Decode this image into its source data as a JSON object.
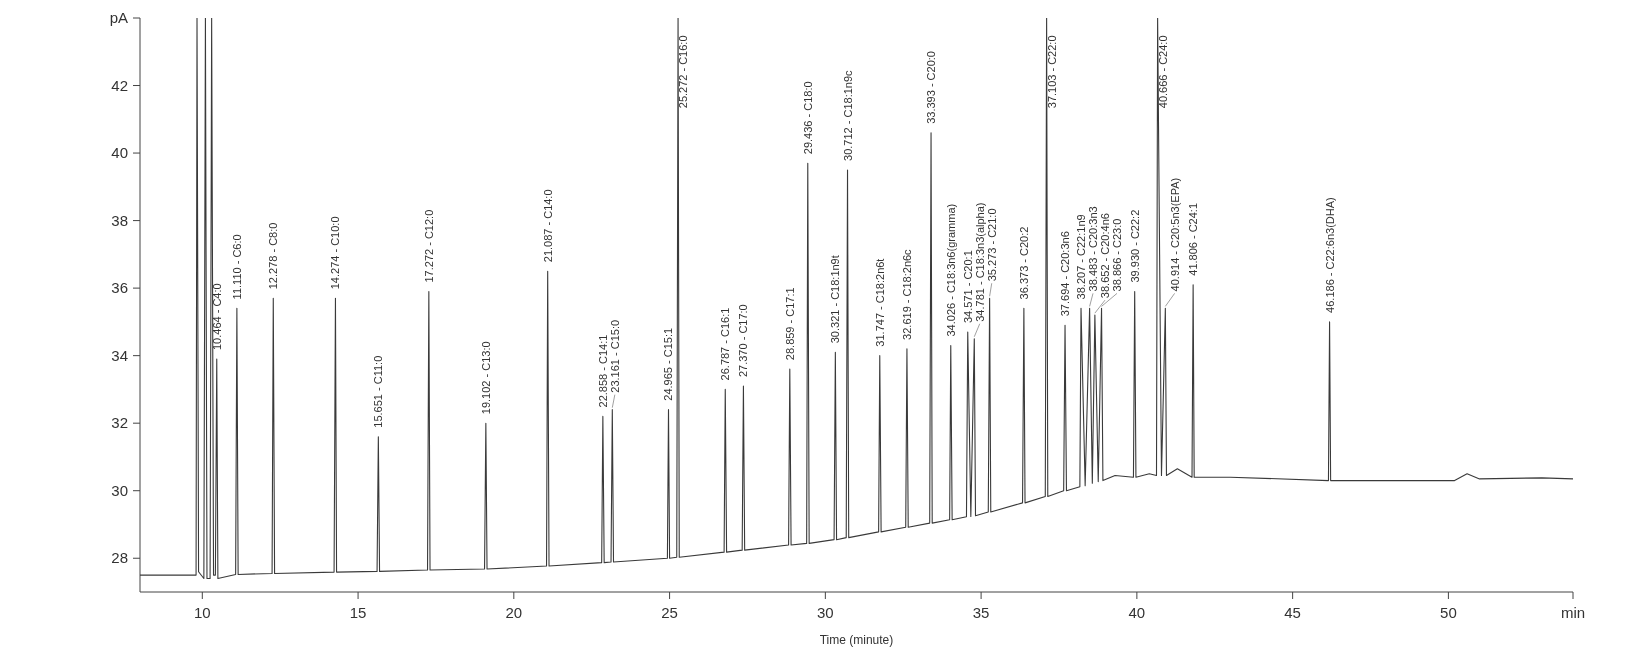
{
  "chart_data": {
    "type": "line",
    "xlabel": "Time (minute)",
    "xlim": [
      8,
      54
    ],
    "xticks": [
      10,
      15,
      20,
      25,
      30,
      35,
      40,
      45,
      50,
      {
        "value": 54,
        "label": "min"
      }
    ],
    "ylim": [
      27,
      44
    ],
    "yticks": [
      28,
      30,
      32,
      34,
      36,
      38,
      40,
      42,
      {
        "value": 44,
        "label": "pA"
      }
    ],
    "series": [
      {
        "color": "#3a3a3a",
        "x": [
          8,
          9.8,
          9.83,
          9.88,
          10.05,
          10.1,
          10.15,
          10.25,
          10.3,
          10.36,
          10.42,
          10.464,
          10.5,
          11.07,
          11.11,
          11.15,
          12.24,
          12.278,
          12.32,
          14.23,
          14.274,
          14.31,
          15.61,
          15.651,
          15.69,
          17.23,
          17.272,
          17.31,
          19.06,
          19.102,
          19.14,
          21.05,
          21.087,
          21.13,
          22.82,
          22.858,
          22.9,
          23.12,
          23.161,
          23.2,
          24.93,
          24.965,
          25.0,
          25.23,
          25.272,
          25.31,
          26.75,
          26.787,
          26.83,
          27.33,
          27.37,
          27.41,
          28.82,
          28.859,
          28.9,
          29.4,
          29.436,
          29.48,
          30.28,
          30.321,
          30.36,
          30.67,
          30.712,
          30.75,
          31.71,
          31.747,
          31.79,
          32.58,
          32.619,
          32.66,
          33.35,
          33.393,
          33.43,
          33.99,
          34.026,
          34.07,
          34.53,
          34.571,
          34.67,
          34.781,
          34.82,
          35.23,
          35.273,
          35.31,
          36.33,
          36.373,
          36.41,
          37.06,
          37.103,
          37.14,
          37.65,
          37.694,
          37.74,
          38.17,
          38.207,
          38.34,
          38.483,
          38.57,
          38.652,
          38.76,
          38.866,
          38.91,
          39.3,
          39.89,
          39.93,
          39.97,
          40.4,
          40.63,
          40.666,
          40.79,
          40.914,
          40.95,
          41.3,
          41.77,
          41.806,
          41.84,
          43,
          46.15,
          46.186,
          46.22,
          48,
          50.2,
          50.6,
          51,
          53,
          54
        ],
        "values": [
          27.5,
          27.5,
          44,
          27.6,
          27.4,
          44,
          27.4,
          27.4,
          44,
          27.5,
          27.5,
          33.9,
          27.4,
          27.52,
          35.4,
          27.52,
          27.55,
          35.7,
          27.55,
          27.59,
          35.7,
          27.59,
          27.61,
          31.6,
          27.61,
          27.65,
          35.9,
          27.65,
          27.68,
          32.0,
          27.68,
          27.77,
          36.5,
          27.77,
          27.87,
          32.2,
          27.87,
          27.89,
          32.4,
          27.89,
          28.0,
          32.4,
          28.0,
          28.03,
          44,
          28.03,
          28.18,
          33.0,
          28.18,
          28.24,
          33.1,
          28.24,
          28.39,
          33.6,
          28.39,
          28.44,
          39.7,
          28.44,
          28.55,
          34.1,
          28.55,
          28.61,
          39.5,
          28.61,
          28.78,
          34.0,
          28.78,
          28.92,
          34.2,
          28.92,
          29.04,
          40.6,
          29.04,
          29.14,
          34.3,
          29.14,
          29.23,
          34.7,
          29.24,
          34.5,
          29.26,
          29.37,
          35.7,
          29.37,
          29.64,
          35.4,
          29.64,
          29.83,
          44,
          29.83,
          30.0,
          34.9,
          30.0,
          30.12,
          35.4,
          30.15,
          35.4,
          30.22,
          35.2,
          30.27,
          35.4,
          30.3,
          30.45,
          30.4,
          35.9,
          30.4,
          30.5,
          30.45,
          44,
          30.45,
          35.4,
          30.45,
          30.65,
          30.4,
          36.1,
          30.4,
          30.4,
          30.3,
          35.0,
          30.3,
          30.3,
          30.3,
          30.5,
          30.35,
          30.38,
          30.35
        ]
      }
    ],
    "annotations": [
      {
        "text": "10.464 - C4:0",
        "x": 10.464,
        "y": 33.9
      },
      {
        "text": "11.110 - C6:0",
        "x": 11.11,
        "y": 35.4
      },
      {
        "text": "12.278 - C8:0",
        "x": 12.278,
        "y": 35.7
      },
      {
        "text": "14.274 - C10:0",
        "x": 14.274,
        "y": 35.7
      },
      {
        "text": "15.651 - C11:0",
        "x": 15.651,
        "y": 31.6
      },
      {
        "text": "17.272 - C12:0",
        "x": 17.272,
        "y": 35.9
      },
      {
        "text": "19.102 - C13:0",
        "x": 19.102,
        "y": 32.0
      },
      {
        "text": "21.087 - C14:0",
        "x": 21.087,
        "y": 36.5
      },
      {
        "text": "22.858 - C14:1",
        "x": 22.858,
        "y": 32.2
      },
      {
        "text": "23.161 - C15:0",
        "x": 23.161,
        "y": 32.4
      },
      {
        "text": "24.965 - C15:1",
        "x": 24.965,
        "y": 32.4
      },
      {
        "text": "25.272 - C16:0",
        "x": 25.272,
        "y": 44
      },
      {
        "text": "26.787 - C16:1",
        "x": 26.787,
        "y": 33.0
      },
      {
        "text": "27.370 - C17:0",
        "x": 27.37,
        "y": 33.1
      },
      {
        "text": "28.859 - C17:1",
        "x": 28.859,
        "y": 33.6
      },
      {
        "text": "29.436 - C18:0",
        "x": 29.436,
        "y": 39.7
      },
      {
        "text": "30.321 - C18:1n9t",
        "x": 30.321,
        "y": 34.1
      },
      {
        "text": "30.712 - C18:1n9c",
        "x": 30.712,
        "y": 39.5
      },
      {
        "text": "31.747 - C18:2n6t",
        "x": 31.747,
        "y": 34.0
      },
      {
        "text": "32.619 - C18:2n6c",
        "x": 32.619,
        "y": 34.2
      },
      {
        "text": "33.393 - C20:0",
        "x": 33.393,
        "y": 40.6
      },
      {
        "text": "34.026 - C18:3n6(gramma)",
        "x": 34.026,
        "y": 34.3
      },
      {
        "text": "34.571 - C20:1",
        "x": 34.571,
        "y": 34.7
      },
      {
        "text": "34.781 - C18:3n3(alpha)",
        "x": 34.781,
        "y": 34.5
      },
      {
        "text": "35.273 - C21:0",
        "x": 35.273,
        "y": 35.7
      },
      {
        "text": "36.373 - C20:2",
        "x": 36.373,
        "y": 35.4
      },
      {
        "text": "37.103 - C22:0",
        "x": 37.103,
        "y": 44
      },
      {
        "text": "37.694 - C20:3n6",
        "x": 37.694,
        "y": 34.9
      },
      {
        "text": "38.207 - C22:1n9",
        "x": 38.207,
        "y": 35.4
      },
      {
        "text": "38.483 - C20:3n3",
        "x": 38.483,
        "y": 35.4
      },
      {
        "text": "38.652 - C20:4n6",
        "x": 38.652,
        "y": 35.2
      },
      {
        "text": "38.866 - C23:0",
        "x": 38.866,
        "y": 35.4
      },
      {
        "text": "39.930 - C22:2",
        "x": 39.93,
        "y": 35.9
      },
      {
        "text": "40.666 - C24:0",
        "x": 40.666,
        "y": 44
      },
      {
        "text": "40.914 - C20:5n3(EPA)",
        "x": 40.914,
        "y": 35.4
      },
      {
        "text": "41.806 - C24:1",
        "x": 41.806,
        "y": 36.1
      },
      {
        "text": "46.186 - C22:6n3(DHA)",
        "x": 46.186,
        "y": 35.0
      }
    ]
  }
}
